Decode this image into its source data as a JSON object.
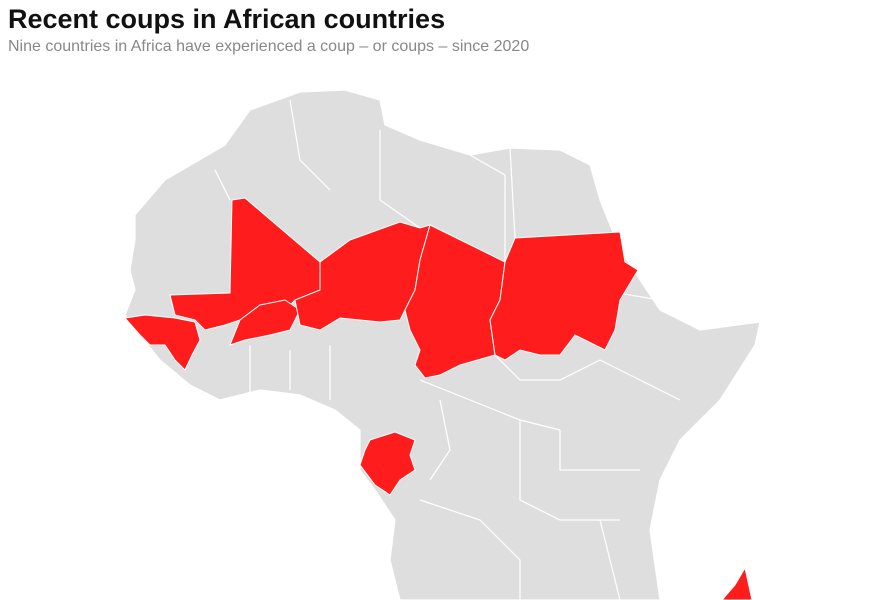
{
  "header": {
    "title": "Recent coups in African countries",
    "subtitle": "Nine countries in Africa have experienced a coup – or coups – since 2020"
  },
  "map": {
    "highlight_color": "#ff1c1c"
  }
}
